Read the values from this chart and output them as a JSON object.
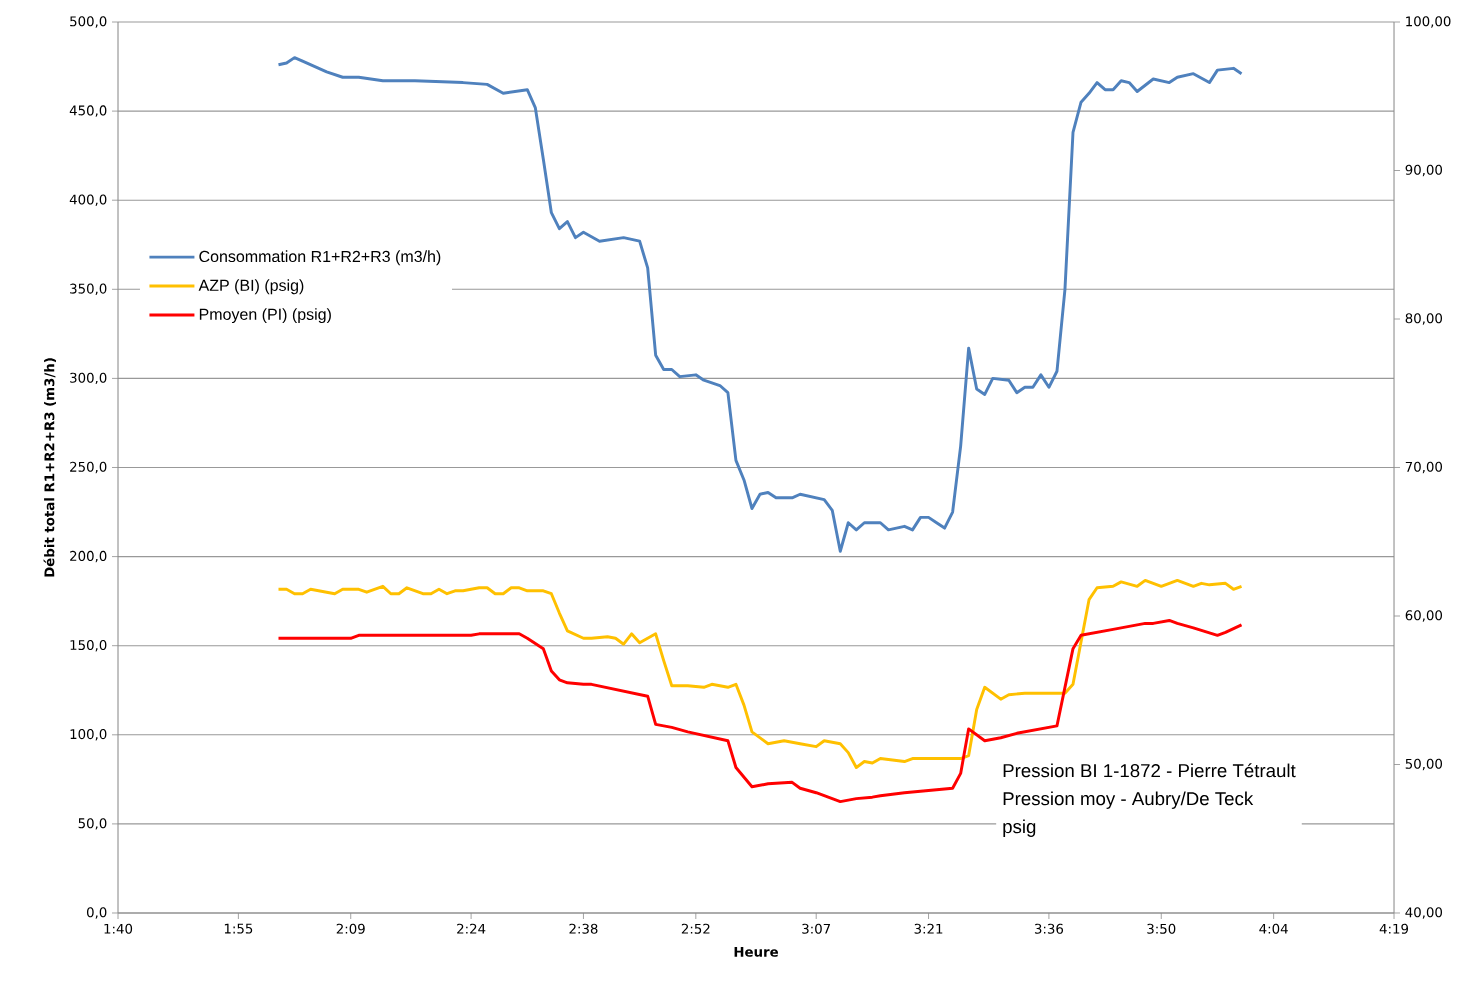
{
  "chart_data": {
    "type": "line",
    "xlabel": "Heure",
    "ylabel": "Débit total R1+R2+R3  (m3/h)",
    "annotations": [
      "Pression BI 1-1872 - Pierre Tétrault",
      "Pression moy - Aubry/De Teck",
      "psig"
    ],
    "xlim": [
      1.6667,
      4.3167
    ],
    "xticks": [
      {
        "value": 1.6667,
        "label": "1:40"
      },
      {
        "value": 1.9167,
        "label": "1:55"
      },
      {
        "value": 2.15,
        "label": "2:09"
      },
      {
        "value": 2.4,
        "label": "2:24"
      },
      {
        "value": 2.6333,
        "label": "2:38"
      },
      {
        "value": 2.8667,
        "label": "2:52"
      },
      {
        "value": 3.1167,
        "label": "3:07"
      },
      {
        "value": 3.35,
        "label": "3:21"
      },
      {
        "value": 3.6,
        "label": "3:36"
      },
      {
        "value": 3.8333,
        "label": "3:50"
      },
      {
        "value": 4.0667,
        "label": "4:04"
      },
      {
        "value": 4.3167,
        "label": "4:19"
      }
    ],
    "ylim": [
      0,
      500
    ],
    "yticks": [
      {
        "value": 0,
        "label": "0,0"
      },
      {
        "value": 50,
        "label": "50,0"
      },
      {
        "value": 100,
        "label": "100,0"
      },
      {
        "value": 150,
        "label": "150,0"
      },
      {
        "value": 200,
        "label": "200,0"
      },
      {
        "value": 250,
        "label": "250,0"
      },
      {
        "value": 300,
        "label": "300,0"
      },
      {
        "value": 350,
        "label": "350,0"
      },
      {
        "value": 400,
        "label": "400,0"
      },
      {
        "value": 450,
        "label": "450,0"
      },
      {
        "value": 500,
        "label": "500,0"
      }
    ],
    "y2lim": [
      40,
      100
    ],
    "y2ticks": [
      {
        "value": 40,
        "label": "40,00"
      },
      {
        "value": 50,
        "label": "50,00"
      },
      {
        "value": 60,
        "label": "60,00"
      },
      {
        "value": 70,
        "label": "70,00"
      },
      {
        "value": 80,
        "label": "80,00"
      },
      {
        "value": 90,
        "label": "90,00"
      },
      {
        "value": 100,
        "label": "100,00"
      }
    ],
    "grid": "y",
    "legend": "left",
    "series": [
      {
        "name": "Consommation R1+R2+R3 (m3/h)",
        "color": "#4f81bd",
        "x": [
          2,
          2.0167,
          2.0333,
          2.05,
          2.1,
          2.1333,
          2.1667,
          2.2167,
          2.2833,
          2.3833,
          2.4333,
          2.4667,
          2.5167,
          2.5333,
          2.55,
          2.5667,
          2.5833,
          2.6,
          2.6167,
          2.6333,
          2.6667,
          2.7167,
          2.75,
          2.7667,
          2.7833,
          2.8,
          2.8167,
          2.8333,
          2.8667,
          2.8833,
          2.9167,
          2.9333,
          2.95,
          2.9667,
          2.9833,
          3,
          3.0167,
          3.0333,
          3.0667,
          3.0833,
          3.1333,
          3.15,
          3.1667,
          3.1833,
          3.2,
          3.2167,
          3.25,
          3.2667,
          3.3,
          3.3167,
          3.3333,
          3.35,
          3.3667,
          3.3833,
          3.4,
          3.4167,
          3.4333,
          3.45,
          3.4667,
          3.4833,
          3.5167,
          3.5333,
          3.55,
          3.5667,
          3.5833,
          3.6,
          3.6167,
          3.6333,
          3.65,
          3.6667,
          3.6833,
          3.7,
          3.7167,
          3.7333,
          3.75,
          3.7667,
          3.7833,
          3.8167,
          3.85,
          3.8667,
          3.9,
          3.9333,
          3.95,
          3.9833,
          4
        ],
        "values": [
          476,
          477,
          480,
          478,
          472,
          469,
          469,
          467,
          467,
          466,
          465,
          460,
          462,
          452,
          423,
          393,
          384,
          388,
          379,
          382,
          377,
          379,
          377,
          362,
          313,
          305,
          305,
          301,
          302,
          299,
          296,
          292,
          254,
          243,
          227,
          235,
          236,
          233,
          233,
          235,
          232,
          226,
          203,
          219,
          215,
          219,
          219,
          215,
          217,
          215,
          222,
          222,
          219,
          216,
          225,
          262,
          317,
          294,
          291,
          300,
          299,
          292,
          295,
          295,
          302,
          295,
          304,
          350,
          438,
          455,
          460,
          466,
          462,
          462,
          467,
          466,
          461,
          468,
          466,
          469,
          471,
          466,
          473,
          474,
          471
        ]
      },
      {
        "name": "AZP (BI) (psig)",
        "color": "#ffc000",
        "axis": "y2",
        "x": [
          2,
          2.0167,
          2.0333,
          2.05,
          2.0667,
          2.1167,
          2.1333,
          2.1667,
          2.1833,
          2.2,
          2.2167,
          2.2333,
          2.25,
          2.2667,
          2.3,
          2.3167,
          2.3333,
          2.35,
          2.3667,
          2.3833,
          2.4167,
          2.4333,
          2.45,
          2.4667,
          2.4833,
          2.5,
          2.5167,
          2.55,
          2.5667,
          2.5833,
          2.6,
          2.6333,
          2.65,
          2.6833,
          2.7,
          2.7167,
          2.7333,
          2.75,
          2.7833,
          2.8,
          2.8167,
          2.85,
          2.8833,
          2.9,
          2.9333,
          2.95,
          2.9667,
          2.9833,
          3.0167,
          3.05,
          3.0833,
          3.1167,
          3.1333,
          3.1667,
          3.1833,
          3.2,
          3.2167,
          3.2333,
          3.25,
          3.3,
          3.3167,
          3.3667,
          3.4,
          3.4167,
          3.4333,
          3.45,
          3.4667,
          3.5,
          3.5167,
          3.55,
          3.6,
          3.6333,
          3.65,
          3.6833,
          3.7,
          3.7333,
          3.75,
          3.7833,
          3.8,
          3.8333,
          3.8667,
          3.9,
          3.9167,
          3.9333,
          3.9667,
          3.9833,
          4
        ],
        "values": [
          61.8,
          61.8,
          61.5,
          61.5,
          61.8,
          61.5,
          61.8,
          61.8,
          61.6,
          61.8,
          62.0,
          61.5,
          61.5,
          61.9,
          61.5,
          61.5,
          61.8,
          61.5,
          61.7,
          61.7,
          61.9,
          61.9,
          61.5,
          61.5,
          61.9,
          61.9,
          61.7,
          61.7,
          61.5,
          60.2,
          59.0,
          58.5,
          58.5,
          58.6,
          58.5,
          58.1,
          58.8,
          58.2,
          58.8,
          57.0,
          55.3,
          55.3,
          55.2,
          55.4,
          55.2,
          55.4,
          54.0,
          52.2,
          51.4,
          51.6,
          51.4,
          51.2,
          51.6,
          51.4,
          50.8,
          49.8,
          50.2,
          50.1,
          50.4,
          50.2,
          50.4,
          50.4,
          50.4,
          50.4,
          50.6,
          53.7,
          55.2,
          54.4,
          54.7,
          54.8,
          54.8,
          54.8,
          55.4,
          61.1,
          61.9,
          62.0,
          62.3,
          62.0,
          62.4,
          62.0,
          62.4,
          62.0,
          62.2,
          62.1,
          62.2,
          61.8,
          62.0
        ]
      },
      {
        "name": "Pmoyen (PI) (psig)",
        "color": "#ff0000",
        "axis": "y2",
        "x": [
          2,
          2.15,
          2.1667,
          2.4,
          2.4167,
          2.5,
          2.5167,
          2.55,
          2.5667,
          2.5833,
          2.6,
          2.6333,
          2.65,
          2.7667,
          2.7833,
          2.8167,
          2.85,
          2.9333,
          2.95,
          2.9833,
          3.0167,
          3.0667,
          3.0833,
          3.1167,
          3.1667,
          3.2,
          3.2333,
          3.25,
          3.3,
          3.3333,
          3.4,
          3.4167,
          3.4333,
          3.4667,
          3.5,
          3.5333,
          3.6167,
          3.65,
          3.6667,
          3.7333,
          3.8,
          3.8167,
          3.85,
          3.8667,
          3.9,
          3.95,
          3.9667,
          4
        ],
        "values": [
          58.5,
          58.5,
          58.7,
          58.7,
          58.8,
          58.8,
          58.5,
          57.8,
          56.3,
          55.7,
          55.5,
          55.4,
          55.4,
          54.6,
          52.7,
          52.5,
          52.2,
          51.6,
          49.8,
          48.5,
          48.7,
          48.8,
          48.4,
          48.1,
          47.5,
          47.7,
          47.8,
          47.9,
          48.1,
          48.2,
          48.4,
          49.4,
          52.4,
          51.6,
          51.8,
          52.1,
          52.6,
          57.8,
          58.7,
          59.1,
          59.5,
          59.5,
          59.7,
          59.5,
          59.2,
          58.7,
          58.9,
          59.4
        ]
      }
    ]
  }
}
